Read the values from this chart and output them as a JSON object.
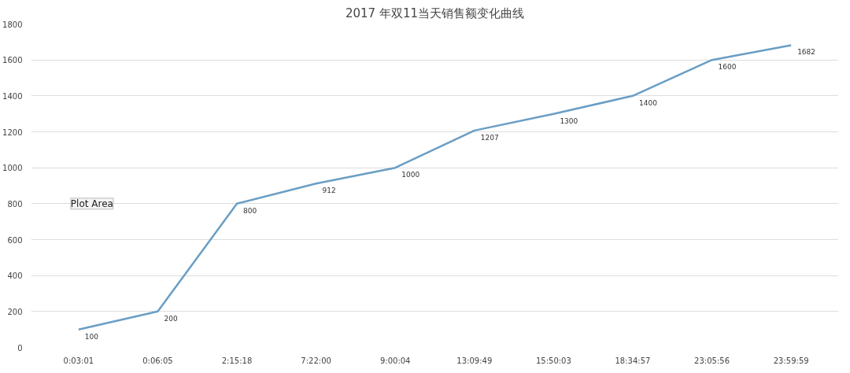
{
  "chart_data": {
    "type": "line",
    "title": "2017 年双11当天销售额变化曲线",
    "categories": [
      "0:03:01",
      "0:06:05",
      "2:15:18",
      "7:22:00",
      "9:00:04",
      "13:09:49",
      "15:50:03",
      "18:34:57",
      "23:05:56",
      "23:59:59"
    ],
    "series": [
      {
        "color": "#6a9ec5",
        "values": [
          100,
          200,
          800,
          912,
          1000,
          1207,
          1300,
          1400,
          1600,
          1682
        ]
      }
    ],
    "ylim": [
      0,
      1800
    ],
    "yticks": [
      0,
      200,
      400,
      600,
      800,
      1000,
      1200,
      1400,
      1600,
      1800
    ],
    "grid": "y",
    "marker": "none",
    "line_style": "solid",
    "data_labels": true,
    "annotations": [
      "Plot Area"
    ]
  }
}
